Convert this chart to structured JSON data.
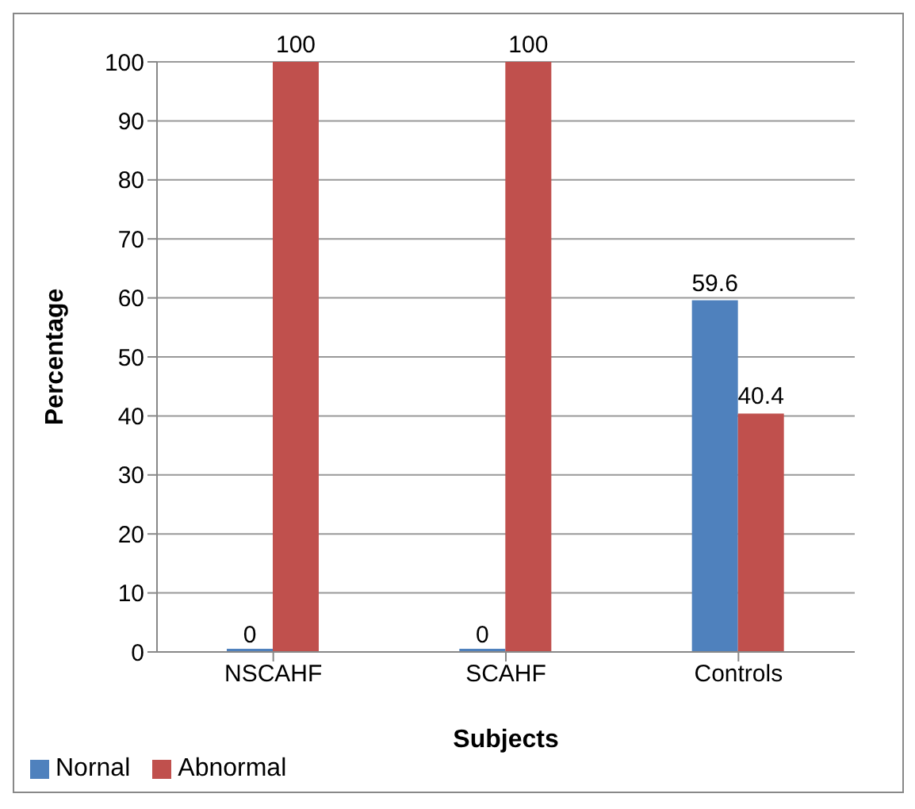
{
  "chart_data": {
    "type": "bar",
    "xlabel": "Subjects",
    "ylabel": "Percentage",
    "categories": [
      "NSCAHF",
      "SCAHF",
      "Controls"
    ],
    "series": [
      {
        "name": "Nornal",
        "color": "#4f81bd",
        "values": [
          0,
          0,
          59.6
        ]
      },
      {
        "name": "Abnormal",
        "color": "#c0504d",
        "values": [
          100,
          100,
          40.4
        ]
      }
    ],
    "ylim": [
      0,
      100
    ],
    "yticks": [
      0,
      10,
      20,
      30,
      40,
      50,
      60,
      70,
      80,
      90,
      100
    ],
    "grid": "y",
    "legend": "bottom left",
    "data_labels": true
  }
}
